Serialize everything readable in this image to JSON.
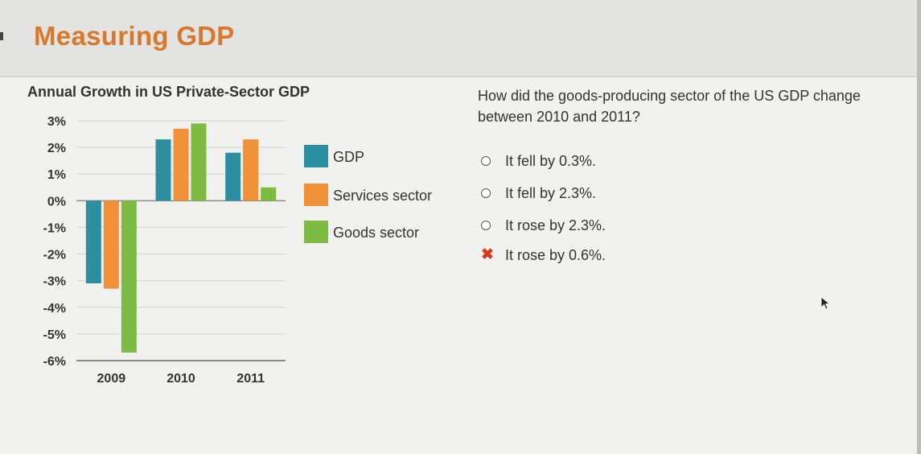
{
  "header": {
    "title": "Measuring GDP"
  },
  "chart_data": {
    "type": "bar",
    "title": "Annual Growth in US Private-Sector GDP",
    "categories": [
      "2009",
      "2010",
      "2011"
    ],
    "series": [
      {
        "name": "GDP",
        "color": "#2b8fa0",
        "values": [
          -3.1,
          2.3,
          1.8
        ]
      },
      {
        "name": "Services sector",
        "color": "#f0913a",
        "values": [
          -3.3,
          2.7,
          2.3
        ]
      },
      {
        "name": "Goods sector",
        "color": "#7dbb42",
        "values": [
          -5.7,
          2.9,
          0.5
        ]
      }
    ],
    "y_ticks": [
      "3%",
      "2%",
      "1%",
      "0%",
      "-1%",
      "-2%",
      "-3%",
      "-4%",
      "-5%",
      "-6%"
    ],
    "ylim": [
      -6,
      3
    ],
    "grid": true,
    "legend_position": "right"
  },
  "question": {
    "text": "How did the goods-producing sector of the US GDP change between 2010 and 2011?",
    "options": [
      {
        "label": "It fell by 0.3%.",
        "state": "unselected"
      },
      {
        "label": "It fell by 2.3%.",
        "state": "unselected"
      },
      {
        "label": "It rose by 2.3%.",
        "state": "unselected"
      },
      {
        "label": "It rose by 0.6%.",
        "state": "incorrect"
      }
    ]
  },
  "icons": {
    "incorrect": "x-mark-icon",
    "pointer": "mouse-pointer-icon"
  }
}
